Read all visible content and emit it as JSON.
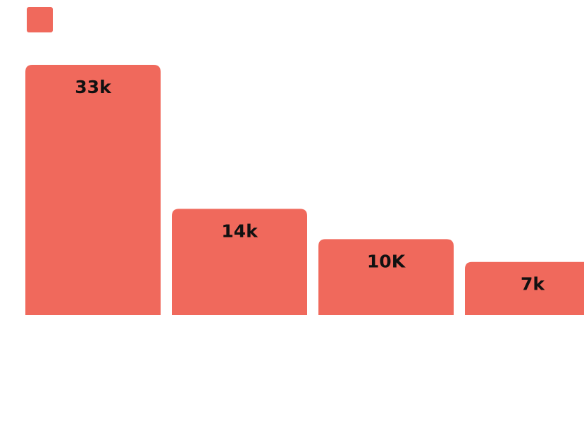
{
  "colors": {
    "bar": "#F0695C",
    "label_text": "#111111",
    "background": "#FFFFFF"
  },
  "legend": {
    "swatch_color": "#F0695C"
  },
  "chart_data": {
    "type": "bar",
    "categories": [
      "",
      "",
      "",
      ""
    ],
    "values": [
      33000,
      14000,
      10000,
      7000
    ],
    "data_labels": [
      "33k",
      "14k",
      "10K",
      "7k"
    ],
    "title": "",
    "xlabel": "",
    "ylabel": "",
    "ylim": [
      0,
      33000
    ],
    "grid": false,
    "axes_visible": false,
    "legend_placement": "top-left"
  }
}
